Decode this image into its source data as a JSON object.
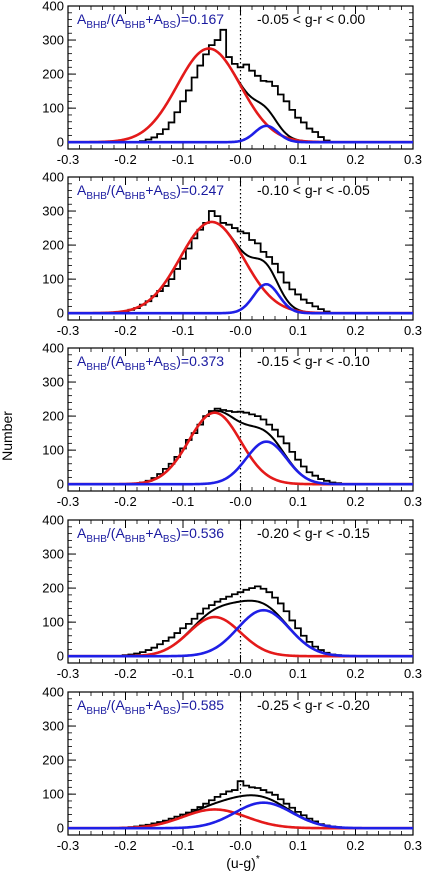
{
  "figure": {
    "ylabel": "Number",
    "xlabel_main": "(u-g)",
    "xlabel_sup": "*"
  },
  "colors": {
    "total": "#000000",
    "bs": "#e41a1a",
    "bhb": "#1f1fe6",
    "annotation": "#1a1aa0"
  },
  "chart_data": [
    {
      "type": "line",
      "xlim": [
        -0.3,
        0.3
      ],
      "ylim": [
        0,
        400
      ],
      "xticks": [
        "-0.3",
        "-0.2",
        "-0.1",
        "-0.0",
        "0.1",
        "0.2",
        "0.3"
      ],
      "yticks": [
        "0",
        "100",
        "200",
        "300",
        "400"
      ],
      "annotation": {
        "prefix": "A",
        "s1": "BHB",
        "mid": "/(A",
        "s2": "BHB",
        "plus": "+A",
        "s3": "BS",
        "end": ")=",
        "value": "0.167"
      },
      "range": "-0.05 < g-r < 0.00",
      "components": {
        "bs": {
          "amp": 275,
          "mu": -0.055,
          "sigma": 0.055
        },
        "bhb": {
          "amp": 48,
          "mu": 0.045,
          "sigma": 0.02
        }
      },
      "histogram": [
        [
          -0.17,
          3
        ],
        [
          -0.16,
          8
        ],
        [
          -0.15,
          14
        ],
        [
          -0.14,
          24
        ],
        [
          -0.13,
          38
        ],
        [
          -0.12,
          58
        ],
        [
          -0.11,
          88
        ],
        [
          -0.1,
          120
        ],
        [
          -0.09,
          152
        ],
        [
          -0.08,
          190
        ],
        [
          -0.07,
          225
        ],
        [
          -0.06,
          258
        ],
        [
          -0.05,
          285
        ],
        [
          -0.04,
          300
        ],
        [
          -0.03,
          330
        ],
        [
          -0.02,
          250
        ],
        [
          -0.01,
          230
        ],
        [
          0.0,
          220
        ],
        [
          0.01,
          228
        ],
        [
          0.02,
          210
        ],
        [
          0.03,
          195
        ],
        [
          0.04,
          180
        ],
        [
          0.05,
          178
        ],
        [
          0.06,
          165
        ],
        [
          0.07,
          140
        ],
        [
          0.08,
          120
        ],
        [
          0.09,
          95
        ],
        [
          0.1,
          72
        ],
        [
          0.11,
          58
        ],
        [
          0.12,
          40
        ],
        [
          0.13,
          30
        ],
        [
          0.14,
          15
        ],
        [
          0.15,
          5
        ]
      ]
    },
    {
      "type": "line",
      "xlim": [
        -0.3,
        0.3
      ],
      "ylim": [
        0,
        400
      ],
      "xticks": [
        "-0.3",
        "-0.2",
        "-0.1",
        "-0.0",
        "0.1",
        "0.2",
        "0.3"
      ],
      "yticks": [
        "0",
        "100",
        "200",
        "300",
        "400"
      ],
      "annotation": {
        "prefix": "A",
        "s1": "BHB",
        "mid": "/(A",
        "s2": "BHB",
        "plus": "+A",
        "s3": "BS",
        "end": ")=",
        "value": "0.247"
      },
      "range": "-0.10 < g-r < -0.05",
      "components": {
        "bs": {
          "amp": 268,
          "mu": -0.05,
          "sigma": 0.055
        },
        "bhb": {
          "amp": 85,
          "mu": 0.045,
          "sigma": 0.022
        }
      },
      "histogram": [
        [
          -0.2,
          5
        ],
        [
          -0.19,
          10
        ],
        [
          -0.18,
          15
        ],
        [
          -0.17,
          25
        ],
        [
          -0.16,
          35
        ],
        [
          -0.15,
          50
        ],
        [
          -0.14,
          65
        ],
        [
          -0.13,
          80
        ],
        [
          -0.12,
          100
        ],
        [
          -0.11,
          130
        ],
        [
          -0.1,
          160
        ],
        [
          -0.09,
          190
        ],
        [
          -0.08,
          220
        ],
        [
          -0.07,
          245
        ],
        [
          -0.06,
          265
        ],
        [
          -0.05,
          300
        ],
        [
          -0.04,
          285
        ],
        [
          -0.03,
          265
        ],
        [
          -0.02,
          260
        ],
        [
          -0.01,
          250
        ],
        [
          0.0,
          240
        ],
        [
          0.01,
          235
        ],
        [
          0.02,
          215
        ],
        [
          0.03,
          205
        ],
        [
          0.04,
          180
        ],
        [
          0.05,
          165
        ],
        [
          0.06,
          145
        ],
        [
          0.07,
          120
        ],
        [
          0.08,
          90
        ],
        [
          0.09,
          70
        ],
        [
          0.1,
          55
        ],
        [
          0.11,
          40
        ],
        [
          0.12,
          30
        ],
        [
          0.13,
          20
        ],
        [
          0.14,
          12
        ],
        [
          0.15,
          5
        ]
      ]
    },
    {
      "type": "line",
      "xlim": [
        -0.3,
        0.3
      ],
      "ylim": [
        0,
        400
      ],
      "xticks": [
        "-0.3",
        "-0.2",
        "-0.1",
        "-0.0",
        "0.1",
        "0.2",
        "0.3"
      ],
      "yticks": [
        "0",
        "100",
        "200",
        "300",
        "400"
      ],
      "annotation": {
        "prefix": "A",
        "s1": "BHB",
        "mid": "/(A",
        "s2": "BHB",
        "plus": "+A",
        "s3": "BS",
        "end": ")=",
        "value": "0.373"
      },
      "range": "-0.15 < g-r < -0.10",
      "components": {
        "bs": {
          "amp": 210,
          "mu": -0.045,
          "sigma": 0.045
        },
        "bhb": {
          "amp": 125,
          "mu": 0.045,
          "sigma": 0.035
        }
      },
      "histogram": [
        [
          -0.17,
          5
        ],
        [
          -0.16,
          10
        ],
        [
          -0.15,
          18
        ],
        [
          -0.14,
          30
        ],
        [
          -0.13,
          45
        ],
        [
          -0.12,
          60
        ],
        [
          -0.11,
          80
        ],
        [
          -0.1,
          105
        ],
        [
          -0.09,
          130
        ],
        [
          -0.08,
          150
        ],
        [
          -0.07,
          175
        ],
        [
          -0.06,
          200
        ],
        [
          -0.05,
          215
        ],
        [
          -0.04,
          222
        ],
        [
          -0.03,
          218
        ],
        [
          -0.02,
          215
        ],
        [
          -0.01,
          212
        ],
        [
          0.0,
          213
        ],
        [
          0.01,
          210
        ],
        [
          0.02,
          205
        ],
        [
          0.03,
          200
        ],
        [
          0.04,
          190
        ],
        [
          0.05,
          175
        ],
        [
          0.06,
          160
        ],
        [
          0.07,
          140
        ],
        [
          0.08,
          120
        ],
        [
          0.09,
          95
        ],
        [
          0.1,
          72
        ],
        [
          0.11,
          52
        ],
        [
          0.12,
          35
        ],
        [
          0.13,
          25
        ],
        [
          0.14,
          15
        ],
        [
          0.15,
          10
        ],
        [
          0.16,
          5
        ],
        [
          0.17,
          3
        ]
      ]
    },
    {
      "type": "line",
      "xlim": [
        -0.3,
        0.3
      ],
      "ylim": [
        0,
        400
      ],
      "xticks": [
        "-0.3",
        "-0.2",
        "-0.1",
        "-0.0",
        "0.1",
        "0.2",
        "0.3"
      ],
      "yticks": [
        "0",
        "100",
        "200",
        "300",
        "400"
      ],
      "annotation": {
        "prefix": "A",
        "s1": "BHB",
        "mid": "/(A",
        "s2": "BHB",
        "plus": "+A",
        "s3": "BS",
        "end": ")=",
        "value": "0.536"
      },
      "range": "-0.20 < g-r < -0.15",
      "components": {
        "bs": {
          "amp": 115,
          "mu": -0.045,
          "sigma": 0.045
        },
        "bhb": {
          "amp": 135,
          "mu": 0.04,
          "sigma": 0.045
        }
      },
      "histogram": [
        [
          -0.2,
          3
        ],
        [
          -0.19,
          5
        ],
        [
          -0.18,
          8
        ],
        [
          -0.17,
          12
        ],
        [
          -0.16,
          18
        ],
        [
          -0.15,
          25
        ],
        [
          -0.14,
          35
        ],
        [
          -0.13,
          45
        ],
        [
          -0.12,
          55
        ],
        [
          -0.11,
          68
        ],
        [
          -0.1,
          82
        ],
        [
          -0.09,
          95
        ],
        [
          -0.08,
          110
        ],
        [
          -0.07,
          125
        ],
        [
          -0.06,
          140
        ],
        [
          -0.05,
          150
        ],
        [
          -0.04,
          160
        ],
        [
          -0.03,
          168
        ],
        [
          -0.02,
          175
        ],
        [
          -0.01,
          182
        ],
        [
          0.0,
          188
        ],
        [
          0.01,
          195
        ],
        [
          0.02,
          200
        ],
        [
          0.03,
          205
        ],
        [
          0.04,
          198
        ],
        [
          0.05,
          188
        ],
        [
          0.06,
          172
        ],
        [
          0.07,
          155
        ],
        [
          0.08,
          132
        ],
        [
          0.09,
          105
        ],
        [
          0.1,
          82
        ],
        [
          0.11,
          60
        ],
        [
          0.12,
          42
        ],
        [
          0.13,
          28
        ],
        [
          0.14,
          18
        ],
        [
          0.15,
          10
        ],
        [
          0.16,
          5
        ],
        [
          0.17,
          3
        ]
      ]
    },
    {
      "type": "line",
      "xlim": [
        -0.3,
        0.3
      ],
      "ylim": [
        0,
        400
      ],
      "xticks": [
        "-0.3",
        "-0.2",
        "-0.1",
        "-0.0",
        "0.1",
        "0.2",
        "0.3"
      ],
      "yticks": [
        "0",
        "100",
        "200",
        "300",
        "400"
      ],
      "annotation": {
        "prefix": "A",
        "s1": "BHB",
        "mid": "/(A",
        "s2": "BHB",
        "plus": "+A",
        "s3": "BS",
        "end": ")=",
        "value": "0.585"
      },
      "range": "-0.25 < g-r < -0.20",
      "components": {
        "bs": {
          "amp": 55,
          "mu": -0.045,
          "sigma": 0.055
        },
        "bhb": {
          "amp": 75,
          "mu": 0.04,
          "sigma": 0.05
        }
      },
      "histogram": [
        [
          -0.2,
          2
        ],
        [
          -0.19,
          3
        ],
        [
          -0.18,
          5
        ],
        [
          -0.17,
          8
        ],
        [
          -0.16,
          10
        ],
        [
          -0.15,
          14
        ],
        [
          -0.14,
          18
        ],
        [
          -0.13,
          22
        ],
        [
          -0.12,
          28
        ],
        [
          -0.11,
          34
        ],
        [
          -0.1,
          40
        ],
        [
          -0.09,
          46
        ],
        [
          -0.08,
          54
        ],
        [
          -0.07,
          62
        ],
        [
          -0.06,
          72
        ],
        [
          -0.05,
          82
        ],
        [
          -0.04,
          92
        ],
        [
          -0.03,
          100
        ],
        [
          -0.02,
          108
        ],
        [
          -0.01,
          112
        ],
        [
          0.0,
          138
        ],
        [
          0.01,
          125
        ],
        [
          0.02,
          120
        ],
        [
          0.03,
          118
        ],
        [
          0.04,
          112
        ],
        [
          0.05,
          105
        ],
        [
          0.06,
          98
        ],
        [
          0.07,
          85
        ],
        [
          0.08,
          72
        ],
        [
          0.09,
          60
        ],
        [
          0.1,
          48
        ],
        [
          0.11,
          38
        ],
        [
          0.12,
          28
        ],
        [
          0.13,
          20
        ],
        [
          0.14,
          12
        ],
        [
          0.15,
          8
        ],
        [
          0.16,
          5
        ],
        [
          0.17,
          3
        ]
      ]
    }
  ]
}
